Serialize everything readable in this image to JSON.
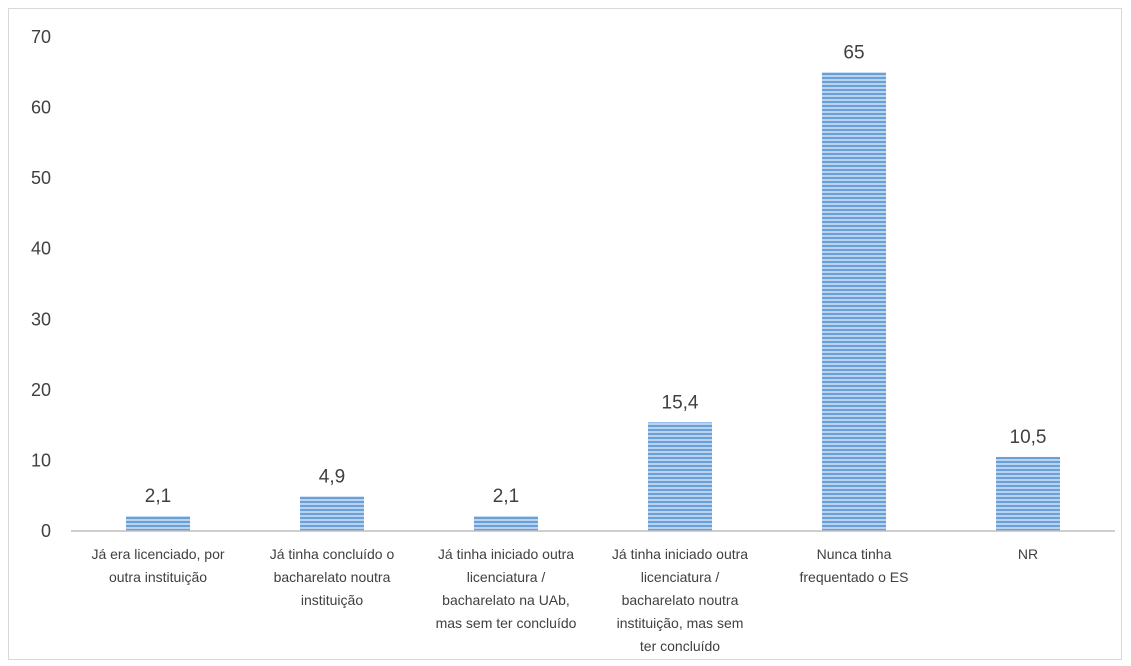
{
  "chart_data": {
    "type": "bar",
    "title": "",
    "xlabel": "",
    "ylabel": "",
    "ylim": [
      0,
      70
    ],
    "yticks": [
      0,
      10,
      20,
      30,
      40,
      50,
      60,
      70
    ],
    "grid": false,
    "legend": "none",
    "bar_color": "#6a9fd8",
    "bar_stripe_color": "#b9d3ef",
    "categories": [
      [
        "Já era licenciado, por",
        "outra instituição"
      ],
      [
        "Já tinha concluído o",
        "bacharelato noutra",
        "instituição"
      ],
      [
        "Já tinha iniciado outra",
        "licenciatura /",
        "bacharelato na UAb,",
        "mas sem ter concluído"
      ],
      [
        "Já tinha iniciado outra",
        "licenciatura /",
        "bacharelato noutra",
        "instituição, mas sem",
        "ter concluído"
      ],
      [
        "Nunca tinha",
        "frequentado o ES"
      ],
      [
        "NR"
      ]
    ],
    "values": [
      2.1,
      4.9,
      2.1,
      15.4,
      65,
      10.5
    ],
    "data_labels": [
      "2,1",
      "4,9",
      "2,1",
      "15,4",
      "65",
      "10,5"
    ]
  }
}
